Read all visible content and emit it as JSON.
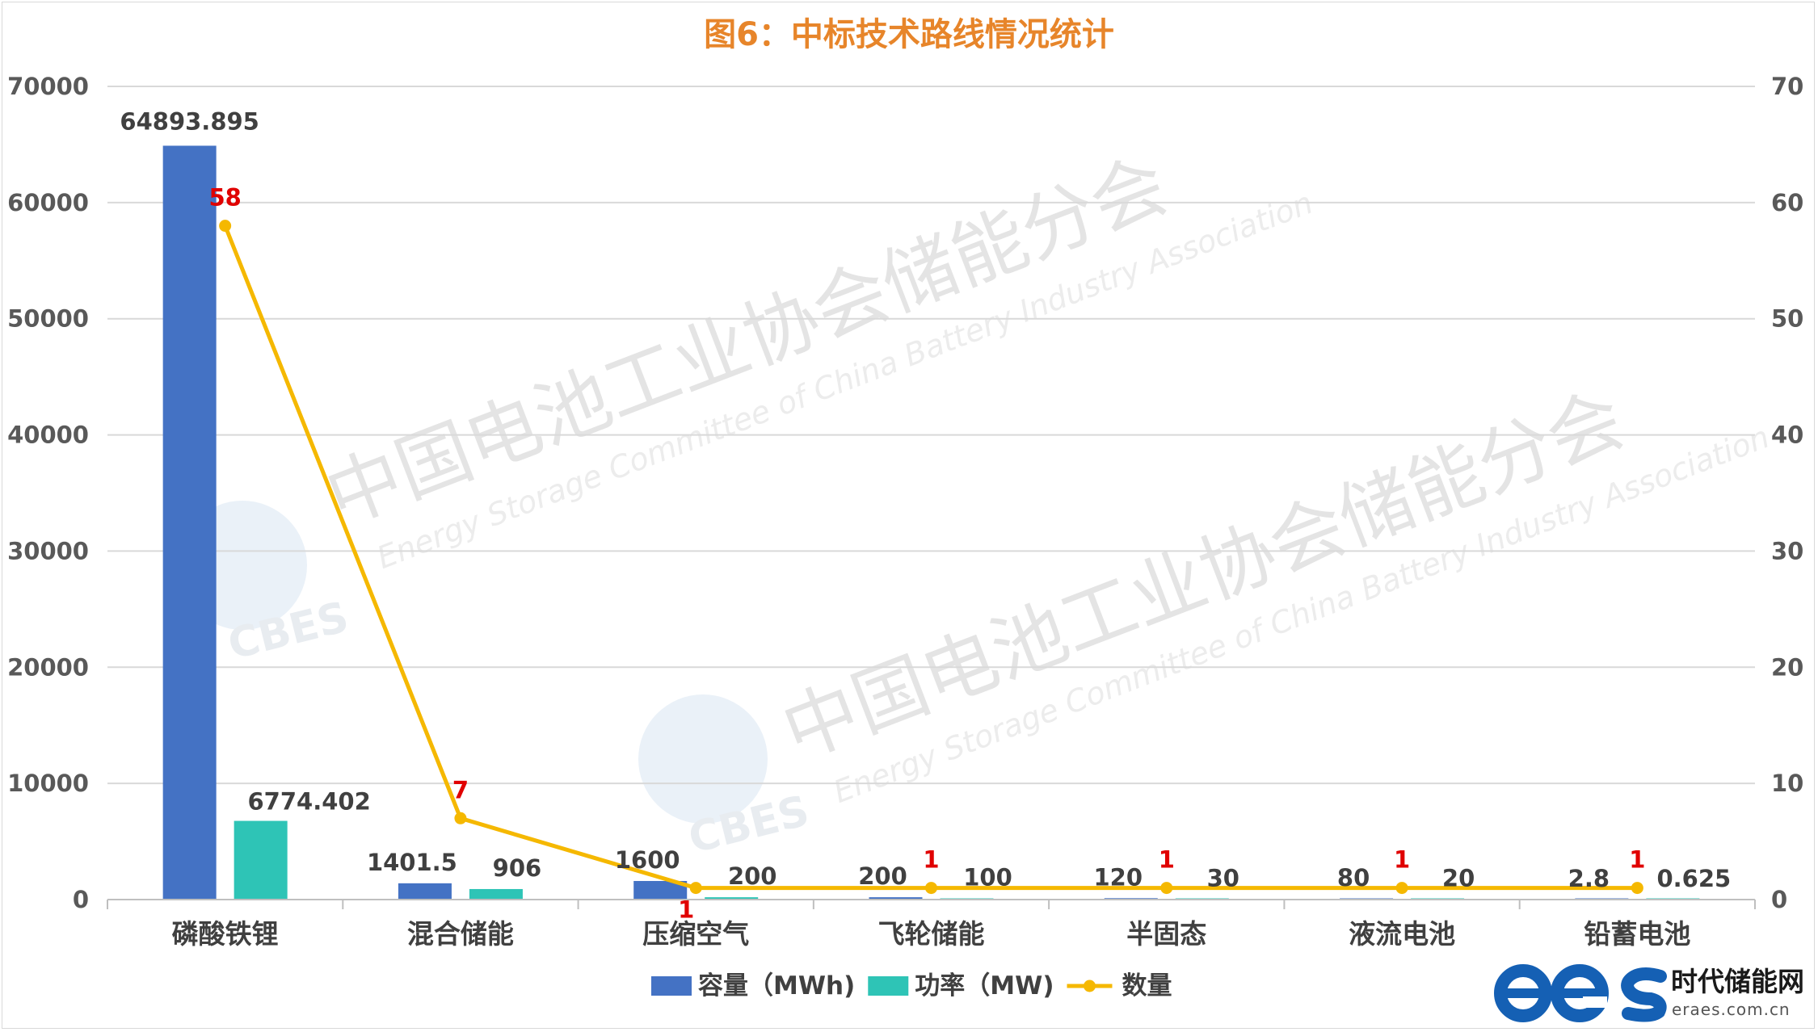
{
  "chart_data": {
    "type": "bar",
    "title": "图6：中标技术路线情况统计",
    "categories": [
      "磷酸铁锂",
      "混合储能",
      "压缩空气",
      "飞轮储能",
      "半固态",
      "液流电池",
      "铅蓄电池"
    ],
    "series": [
      {
        "name": "容量（MWh)",
        "type": "bar",
        "axis": "left",
        "color": "#4472c4",
        "values": [
          64893.895,
          1401.5,
          1600,
          200,
          120,
          80,
          2.8
        ],
        "labels": [
          "64893.895",
          "1401.5",
          "1600",
          "200",
          "120",
          "80",
          "2.8"
        ]
      },
      {
        "name": "功率（MW)",
        "type": "bar",
        "axis": "left",
        "color": "#2ec4b6",
        "values": [
          6774.402,
          906,
          200,
          100,
          30,
          20,
          0.625
        ],
        "labels": [
          "6774.402",
          "906",
          "200",
          "100",
          "30",
          "20",
          "0.625"
        ]
      },
      {
        "name": "数量",
        "type": "line",
        "axis": "right",
        "color": "#f5b800",
        "values": [
          58,
          7,
          1,
          1,
          1,
          1,
          1
        ],
        "labels": [
          "58",
          "7",
          "1",
          "1",
          "1",
          "1",
          "1"
        ]
      }
    ],
    "y_left": {
      "min": 0,
      "max": 70000,
      "ticks": [
        "0",
        "10000",
        "20000",
        "30000",
        "40000",
        "50000",
        "60000",
        "70000"
      ]
    },
    "y_right": {
      "min": 0,
      "max": 70,
      "ticks": [
        "0",
        "10",
        "20",
        "30",
        "40",
        "50",
        "60",
        "70"
      ]
    },
    "grid": true,
    "legend": "bottom"
  },
  "watermark": {
    "org_cn": "中国电池工业协会储能分会",
    "org_en": "Energy Storage Committee of China Battery Industry Association",
    "mark": "CBES"
  },
  "brand": {
    "logo": "ees",
    "name": "时代储能网",
    "url": "eraes.com.cn",
    "color": "#1560b4"
  }
}
